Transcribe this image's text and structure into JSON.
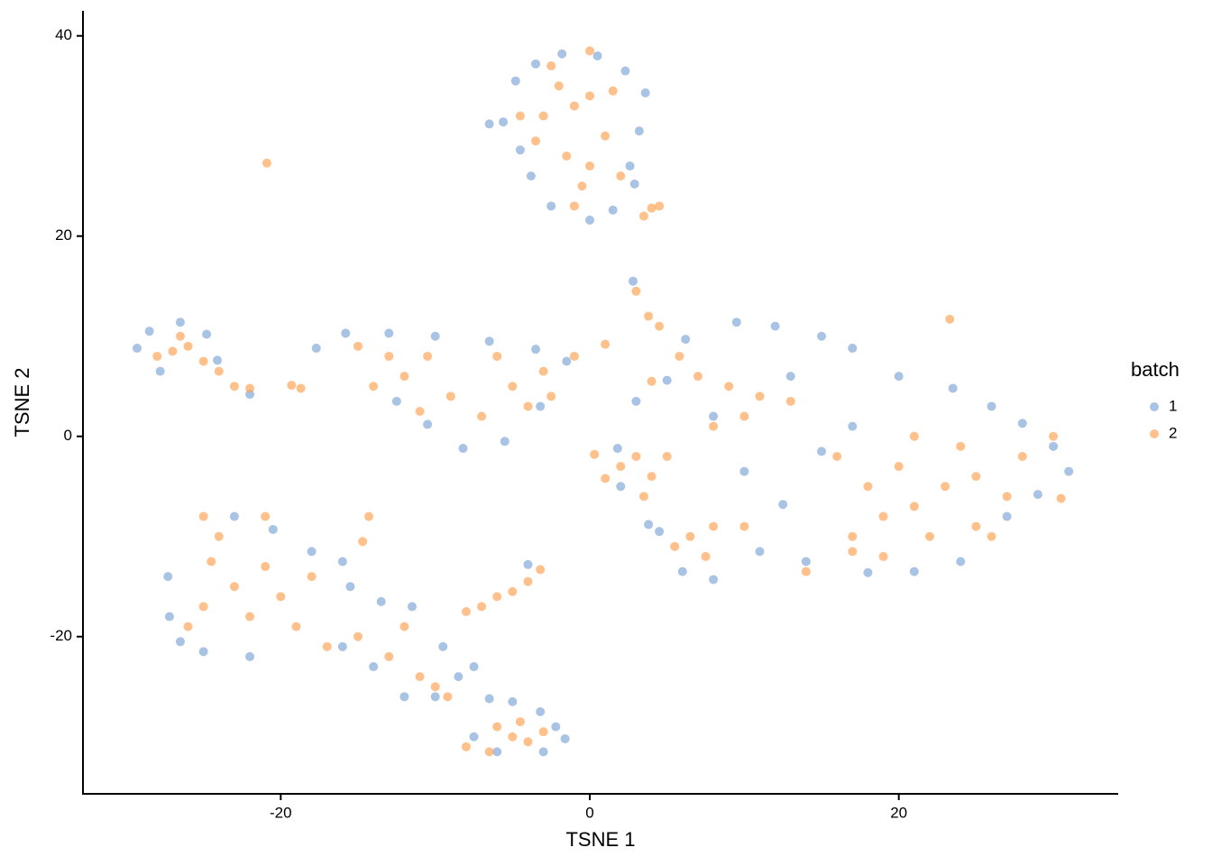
{
  "chart_data": {
    "type": "scatter",
    "x_label": "TSNE 1",
    "y_label": "TSNE 2",
    "xlim": [
      -32.8,
      34.2
    ],
    "ylim": [
      -35.7,
      42.5
    ],
    "xticks": [
      -20,
      0,
      20
    ],
    "yticks": [
      -20,
      0,
      20,
      40
    ],
    "legend_title": "batch",
    "legend_position": "right",
    "opacity": 0.65,
    "series": [
      {
        "name": "1",
        "color": "#7aa3d4",
        "x": [
          -5.6,
          -4.8,
          -3.5,
          -1.8,
          0.5,
          2.3,
          3.6,
          3.2,
          2.6,
          2.9,
          1.5,
          0,
          -2.5,
          -3.8,
          -4.5,
          -6.5,
          -29.3,
          -28.5,
          -26.5,
          -24.8,
          -24.1,
          -22,
          -27.8,
          -15.8,
          -13,
          -10,
          -6.5,
          -3.5,
          -1.5,
          -3.2,
          -5.5,
          -8.2,
          -10.5,
          -12.5,
          -17.7,
          2.8,
          6.2,
          9.5,
          12,
          15,
          17,
          20,
          23.5,
          26,
          28,
          30,
          31,
          29,
          27,
          24,
          21,
          18,
          14,
          11,
          8,
          6,
          4.5,
          3.8,
          2,
          1.8,
          3,
          5,
          8,
          10,
          12.5,
          15,
          13,
          17,
          -27.3,
          -27.2,
          -26.5,
          -25,
          -22,
          -23,
          -20.5,
          -18,
          -16,
          -15.5,
          -16,
          -14,
          -13.5,
          -11.5,
          -9.5,
          -8.5,
          -7.5,
          -10,
          -12,
          -7.5,
          -6.5,
          -5,
          -3.2,
          -2.2,
          -1.6,
          -3,
          -6,
          -4
        ],
        "values": [
          31.4,
          35.5,
          37.2,
          38.2,
          38,
          36.5,
          34.3,
          30.5,
          27,
          25.2,
          22.6,
          21.6,
          23,
          26,
          28.6,
          31.2,
          8.8,
          10.5,
          11.4,
          10.2,
          7.6,
          4.2,
          6.5,
          10.3,
          10.3,
          10,
          9.5,
          8.7,
          7.5,
          3,
          -0.5,
          -1.2,
          1.2,
          3.5,
          8.8,
          15.5,
          9.7,
          11.4,
          11,
          10,
          8.8,
          6,
          4.8,
          3,
          1.3,
          -1,
          -3.5,
          -5.8,
          -8,
          -12.5,
          -13.5,
          -13.6,
          -12.5,
          -11.5,
          -14.3,
          -13.5,
          -9.5,
          -8.8,
          -5,
          -1.2,
          3.5,
          5.6,
          2,
          -3.5,
          -6.8,
          -1.5,
          6,
          1,
          -14,
          -18,
          -20.5,
          -21.5,
          -22,
          -8,
          -9.3,
          -11.5,
          -12.5,
          -15,
          -21,
          -23,
          -16.5,
          -17,
          -21,
          -24,
          -23,
          -26,
          -26,
          -30,
          -26.2,
          -26.5,
          -27.5,
          -29,
          -30.2,
          -31.5,
          -31.5,
          -12.8
        ]
      },
      {
        "name": "2",
        "color": "#ffa04d",
        "x": [
          -2,
          -1,
          0,
          -3,
          1,
          -1.5,
          0,
          -0.5,
          2,
          -3.5,
          -4.5,
          1.5,
          -2.5,
          0,
          -1,
          3.5,
          4,
          4.5,
          -20.9,
          23.3,
          -27,
          -26,
          -25,
          -28,
          -24,
          -23,
          -22,
          -19.3,
          -18.7,
          -26.5,
          -15,
          -13,
          -12,
          -10.5,
          -9,
          -7,
          -5,
          -4,
          -6,
          -3,
          -1,
          -14,
          -11,
          -2.5,
          3,
          3.8,
          4.5,
          5.8,
          7,
          9,
          11,
          13,
          8,
          10,
          4,
          1,
          3,
          4,
          2,
          5,
          3.5,
          1,
          0.3,
          6.5,
          7.5,
          8,
          5.5,
          10,
          14,
          17,
          19,
          21,
          23,
          20,
          18,
          22,
          25,
          27,
          24,
          21,
          19,
          26,
          28,
          30,
          30.5,
          16,
          17,
          25,
          -25,
          -24,
          -23,
          -25,
          -22,
          -26,
          -21,
          -20,
          -18,
          -19,
          -17,
          -15,
          -13,
          -12,
          -11,
          -10,
          -9.2,
          -14.3,
          -14.7,
          -21,
          -24.5,
          -8,
          -7,
          -6,
          -5,
          -4,
          -3.2,
          -6,
          -5,
          -4,
          -3,
          -8,
          -6.5,
          -4.5
        ],
        "values": [
          35,
          33,
          34,
          32,
          30,
          28,
          27,
          25,
          26,
          29.5,
          32,
          34.5,
          37,
          38.5,
          23,
          22,
          22.8,
          23,
          27.3,
          11.7,
          8.5,
          9,
          7.5,
          8,
          6.5,
          5,
          4.8,
          5.1,
          4.8,
          10,
          9,
          8,
          6,
          8,
          4,
          2,
          5,
          3,
          8,
          6.5,
          8,
          5,
          2.5,
          4,
          14.5,
          12,
          11,
          8,
          6,
          5,
          4,
          3.5,
          1,
          2,
          5.5,
          9.2,
          -2,
          -4,
          -3,
          -2,
          -6,
          -4.2,
          -1.8,
          -10,
          -12,
          -9,
          -11,
          -9,
          -13.5,
          -10,
          -8,
          -7,
          -5,
          -3,
          -5,
          -10,
          -4,
          -6,
          -1,
          0,
          -12,
          -10,
          -2,
          0,
          -6.2,
          -2,
          -11.5,
          -9,
          -8,
          -10,
          -15,
          -17,
          -18,
          -19,
          -13,
          -16,
          -14,
          -19,
          -21,
          -20,
          -22,
          -19,
          -24,
          -25,
          -26,
          -8,
          -10.5,
          -8,
          -12.5,
          -17.5,
          -17,
          -16,
          -15.5,
          -14.5,
          -13.3,
          -29,
          -30,
          -30.5,
          -29.5,
          -31,
          -31.5,
          -28.5
        ]
      }
    ]
  }
}
